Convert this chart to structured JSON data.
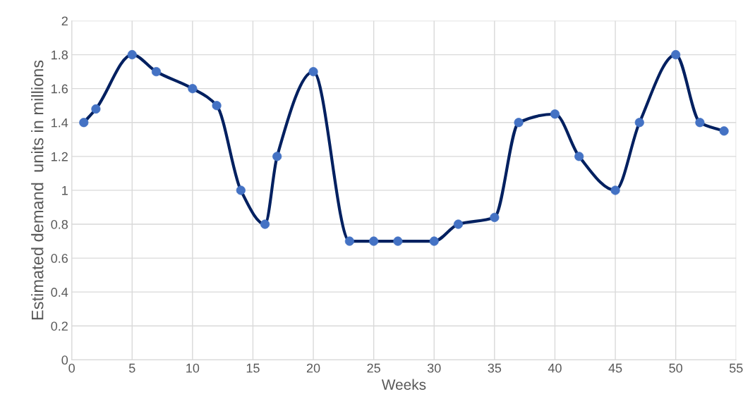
{
  "chart_data": {
    "type": "line",
    "xlabel": "Weeks",
    "ylabel": "Estimated demand  units in millions",
    "x": [
      1,
      2,
      5,
      7,
      10,
      12,
      14,
      16,
      17,
      20,
      23,
      25,
      27,
      30,
      32,
      35,
      37,
      40,
      42,
      45,
      47,
      50,
      52,
      54
    ],
    "series": [
      {
        "color": "#002060",
        "values": [
          1.4,
          1.48,
          1.8,
          1.7,
          1.6,
          1.5,
          1.0,
          0.8,
          1.2,
          1.7,
          0.7,
          0.7,
          0.7,
          0.7,
          0.8,
          0.84,
          1.4,
          1.45,
          1.2,
          1.0,
          1.4,
          1.8,
          1.4,
          1.35
        ]
      }
    ],
    "xlim": [
      0,
      55
    ],
    "xticks": [
      0,
      5,
      10,
      15,
      20,
      25,
      30,
      35,
      40,
      45,
      50,
      55
    ],
    "ylim": [
      0,
      2
    ],
    "yticks": [
      0,
      0.2,
      0.4,
      0.6,
      0.8,
      1,
      1.2,
      1.4,
      1.6,
      1.8,
      2
    ],
    "grid": true,
    "marker": "circle",
    "line_style": "solid"
  }
}
